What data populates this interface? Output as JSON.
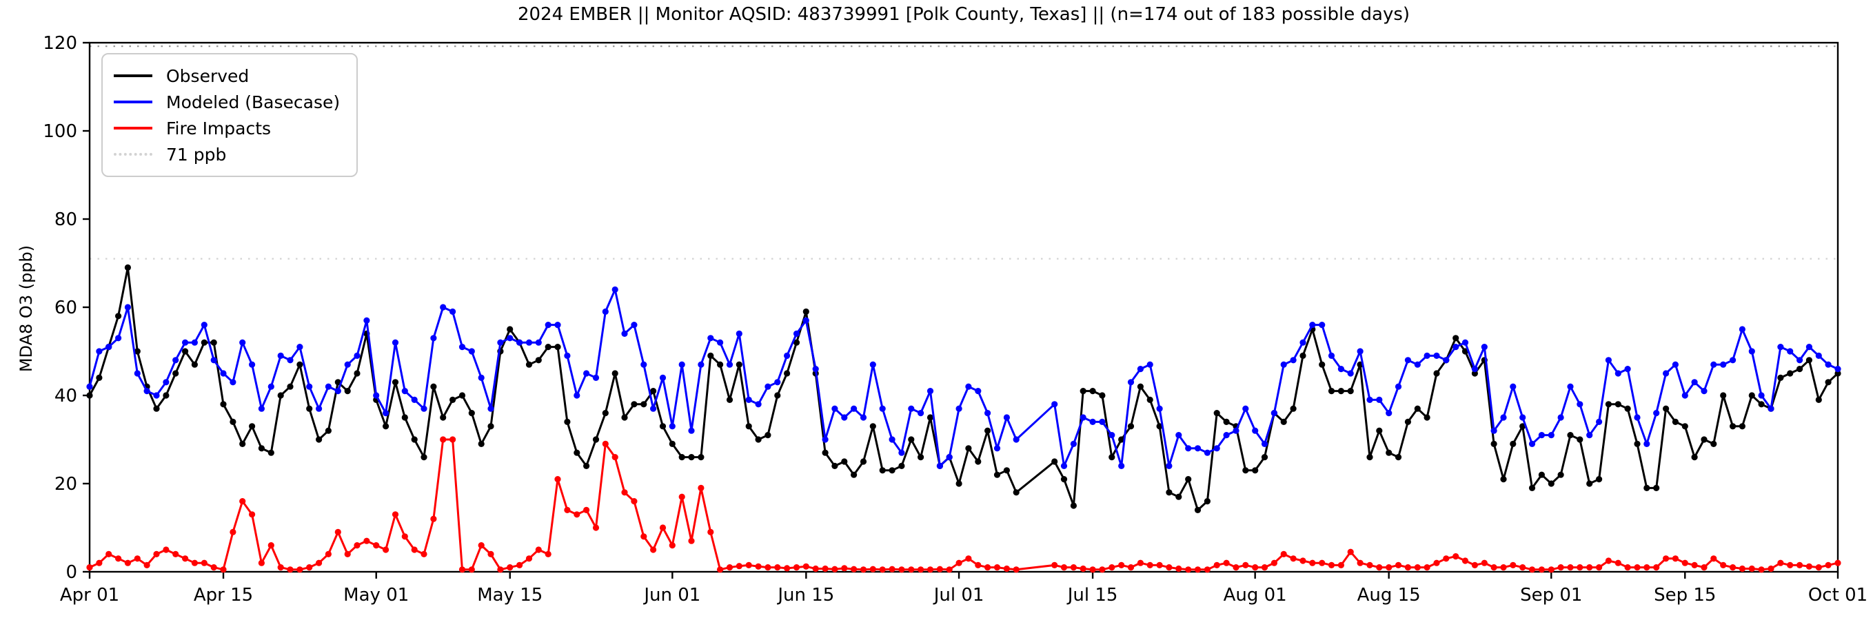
{
  "title": "2024 EMBER || Monitor AQSID: 483739991 [Polk County, Texas] || (n=174 out of 183 possible days)",
  "axes": {
    "y": {
      "label": "MDA8 O3 (ppb)",
      "ticks": [
        0,
        20,
        40,
        60,
        80,
        100,
        120
      ],
      "range": [
        0,
        120
      ]
    },
    "x": {
      "tick_labels": [
        "Apr 01",
        "Apr 15",
        "May 01",
        "May 15",
        "Jun 01",
        "Jun 15",
        "Jul 01",
        "Jul 15",
        "Aug 01",
        "Aug 15",
        "Sep 01",
        "Sep 15",
        "Oct 01"
      ],
      "tick_days": [
        0,
        14,
        30,
        44,
        61,
        75,
        91,
        105,
        122,
        136,
        153,
        167,
        183
      ],
      "range_days": [
        0,
        183
      ]
    }
  },
  "legend": {
    "entries": [
      {
        "label": "Observed",
        "color": "#000000",
        "style": "solid"
      },
      {
        "label": "Modeled (Basecase)",
        "color": "#0000ff",
        "style": "solid"
      },
      {
        "label": "Fire Impacts",
        "color": "#ff0000",
        "style": "solid"
      },
      {
        "label": "71 ppb",
        "color": "#d3d3d3",
        "style": "dotted"
      }
    ]
  },
  "reference_lines": [
    {
      "name": "71-ppb-threshold",
      "value": 71,
      "color": "#d3d3d3"
    },
    {
      "name": "upper-dotted-line",
      "value": 119.2,
      "color": "#999999"
    }
  ],
  "chart_data": {
    "type": "line",
    "title": "2024 EMBER || Monitor AQSID: 483739991 [Polk County, Texas] || (n=174 out of 183 possible days)",
    "xlabel": "",
    "ylabel": "MDA8 O3 (ppb)",
    "ylim": [
      0,
      120
    ],
    "grid": false,
    "legend_position": "upper-left",
    "marker": "circle",
    "x_unit": "days from Apr 01 (daily values, Apr 01 - Oct 01)",
    "x_start_label": "Apr 01",
    "x_end_label": "Oct 01",
    "series": [
      {
        "name": "Observed",
        "color": "#000000",
        "values": [
          40,
          44,
          51,
          58,
          69,
          50,
          42,
          37,
          40,
          45,
          50,
          47,
          52,
          52,
          38,
          34,
          29,
          33,
          28,
          27,
          40,
          42,
          47,
          37,
          30,
          32,
          43,
          41,
          45,
          54,
          39,
          33,
          43,
          35,
          30,
          26,
          42,
          35,
          39,
          40,
          36,
          29,
          33,
          50,
          55,
          52,
          47,
          48,
          51,
          51,
          34,
          27,
          24,
          30,
          36,
          45,
          35,
          38,
          38,
          41,
          33,
          29,
          26,
          26,
          26,
          49,
          47,
          39,
          47,
          33,
          30,
          31,
          40,
          45,
          52,
          59,
          45,
          27,
          24,
          25,
          22,
          25,
          33,
          23,
          23,
          24,
          30,
          26,
          35,
          24,
          26,
          20,
          28,
          25,
          32,
          22,
          23,
          18,
          null,
          null,
          null,
          25,
          21,
          15,
          41,
          41,
          40,
          26,
          30,
          33,
          42,
          39,
          33,
          18,
          17,
          21,
          14,
          16,
          36,
          34,
          33,
          23,
          23,
          26,
          36,
          34,
          37,
          49,
          55,
          47,
          41,
          41,
          41,
          47,
          26,
          32,
          27,
          26,
          34,
          37,
          35,
          45,
          48,
          53,
          50,
          45,
          48,
          29,
          21,
          29,
          33,
          19,
          22,
          20,
          22,
          31,
          30,
          20,
          21,
          38,
          38,
          37,
          29,
          19,
          19,
          37,
          34,
          33,
          26,
          30,
          29,
          40,
          33,
          33,
          40,
          38,
          37,
          44,
          45,
          46,
          48,
          39,
          43,
          45
        ]
      },
      {
        "name": "Modeled (Basecase)",
        "color": "#0000ff",
        "values": [
          42,
          50,
          51,
          53,
          60,
          45,
          41,
          40,
          43,
          48,
          52,
          52,
          56,
          48,
          45,
          43,
          52,
          47,
          37,
          42,
          49,
          48,
          51,
          42,
          37,
          42,
          41,
          47,
          49,
          57,
          40,
          36,
          52,
          41,
          39,
          37,
          53,
          60,
          59,
          51,
          50,
          44,
          37,
          52,
          53,
          52,
          52,
          52,
          56,
          56,
          49,
          40,
          45,
          44,
          59,
          64,
          54,
          56,
          47,
          37,
          44,
          33,
          47,
          32,
          47,
          53,
          52,
          47,
          54,
          39,
          38,
          42,
          43,
          49,
          54,
          57,
          46,
          30,
          37,
          35,
          37,
          35,
          47,
          37,
          30,
          27,
          37,
          36,
          41,
          24,
          26,
          37,
          42,
          41,
          36,
          28,
          35,
          30,
          null,
          null,
          null,
          38,
          24,
          29,
          35,
          34,
          34,
          31,
          24,
          43,
          46,
          47,
          37,
          24,
          31,
          28,
          28,
          27,
          28,
          31,
          32,
          37,
          32,
          29,
          36,
          47,
          48,
          52,
          56,
          56,
          49,
          46,
          45,
          50,
          39,
          39,
          36,
          42,
          48,
          47,
          49,
          49,
          48,
          51,
          52,
          46,
          51,
          32,
          35,
          42,
          35,
          29,
          31,
          31,
          35,
          42,
          38,
          31,
          34,
          48,
          45,
          46,
          35,
          29,
          36,
          45,
          47,
          40,
          43,
          41,
          47,
          47,
          48,
          55,
          50,
          40,
          37,
          51,
          50,
          48,
          51,
          49,
          47,
          46
        ]
      },
      {
        "name": "Fire Impacts",
        "color": "#ff0000",
        "values": [
          1,
          2,
          4,
          3,
          2,
          3,
          1.5,
          4,
          5,
          4,
          3,
          2,
          2,
          1,
          0.5,
          9,
          16,
          13,
          2,
          6,
          1,
          0.5,
          0.5,
          1,
          2,
          4,
          9,
          4,
          6,
          7,
          6,
          5,
          13,
          8,
          5,
          4,
          12,
          30,
          30,
          0.5,
          0.5,
          6,
          4,
          0.5,
          1,
          1.5,
          3,
          5,
          4,
          21,
          14,
          13,
          14,
          10,
          29,
          26,
          18,
          16,
          8,
          5,
          10,
          6,
          17,
          7,
          19,
          9,
          0.5,
          1,
          1.3,
          1.5,
          1.2,
          1,
          1,
          0.8,
          1,
          1.2,
          0.7,
          0.7,
          0.6,
          0.8,
          0.6,
          0.5,
          0.6,
          0.5,
          0.6,
          0.5,
          0.5,
          0.5,
          0.5,
          0.6,
          0.5,
          2,
          3,
          1.5,
          1,
          1,
          0.7,
          0.5,
          null,
          null,
          null,
          1.5,
          1,
          1,
          0.7,
          0.5,
          0.5,
          1,
          1.5,
          1,
          2,
          1.5,
          1.5,
          1,
          0.7,
          0.5,
          0.5,
          0.5,
          1.5,
          2,
          1,
          1.5,
          1,
          1,
          2,
          4,
          3,
          2.5,
          2,
          2,
          1.5,
          1.5,
          4.5,
          2,
          1.5,
          1,
          1,
          1.5,
          1,
          1,
          1,
          2,
          3,
          3.5,
          2.5,
          1.5,
          2,
          1,
          1,
          1.5,
          1,
          0.5,
          0.5,
          0.5,
          1,
          1,
          1,
          1,
          1,
          2.5,
          2,
          1,
          1,
          1,
          1,
          3,
          3,
          2,
          1.5,
          1,
          3,
          1.5,
          1,
          0.7,
          0.7,
          0.5,
          0.7,
          2,
          1.5,
          1.5,
          1.2,
          1,
          1.5,
          2
        ]
      }
    ]
  }
}
